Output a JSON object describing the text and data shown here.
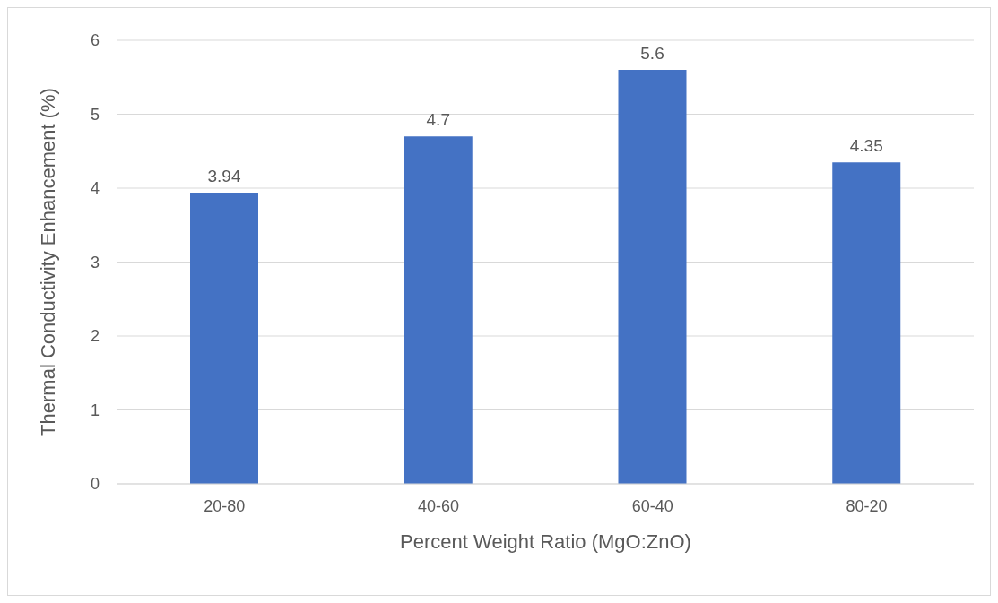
{
  "chart_data": {
    "type": "bar",
    "xlabel": "Percent Weight Ratio (MgO:ZnO)",
    "ylabel": "Thermal Conductivity Enhancement (%)",
    "categories": [
      "20-80",
      "40-60",
      "60-40",
      "80-20"
    ],
    "values": [
      3.94,
      4.7,
      5.6,
      4.35
    ],
    "color": "#4472c4",
    "ylim": [
      0,
      6
    ],
    "yticks": [
      0,
      1,
      2,
      3,
      4,
      5,
      6
    ],
    "grid": "y",
    "data_labels": true
  }
}
